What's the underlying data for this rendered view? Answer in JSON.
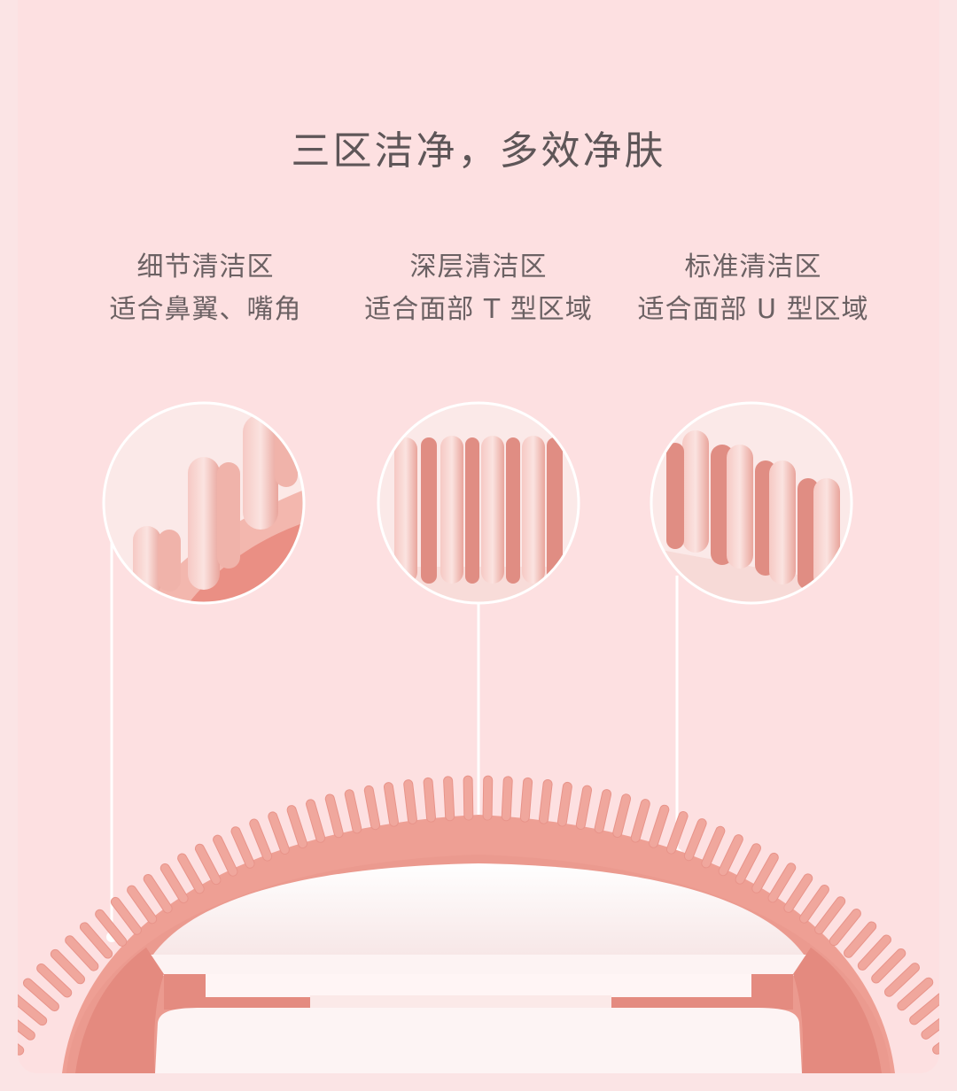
{
  "page": {
    "title": "三区洁净，多效净肤"
  },
  "zones": [
    {
      "name": "细节清洁区",
      "desc": "适合鼻翼、嘴角"
    },
    {
      "name": "深层清洁区",
      "desc": "适合面部 T 型区域"
    },
    {
      "name": "标准清洁区",
      "desc": "适合面部 U 型区域"
    }
  ],
  "colors": {
    "background": "#fde0e1",
    "text": "#5e5658",
    "silicone": "#eb9a8f",
    "silicone_dark": "#d8796e",
    "bristle_light": "#f7cfcb",
    "body_white": "#fdf7f7"
  }
}
